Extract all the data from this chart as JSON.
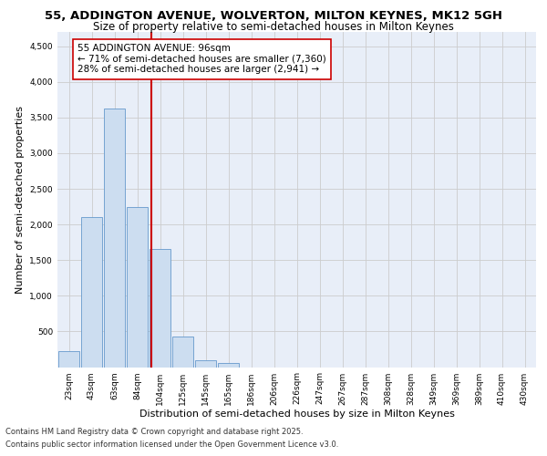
{
  "title_line1": "55, ADDINGTON AVENUE, WOLVERTON, MILTON KEYNES, MK12 5GH",
  "title_line2": "Size of property relative to semi-detached houses in Milton Keynes",
  "xlabel": "Distribution of semi-detached houses by size in Milton Keynes",
  "ylabel": "Number of semi-detached properties",
  "categories": [
    "23sqm",
    "43sqm",
    "63sqm",
    "84sqm",
    "104sqm",
    "125sqm",
    "145sqm",
    "165sqm",
    "186sqm",
    "206sqm",
    "226sqm",
    "247sqm",
    "267sqm",
    "287sqm",
    "308sqm",
    "328sqm",
    "349sqm",
    "369sqm",
    "389sqm",
    "410sqm",
    "430sqm"
  ],
  "values": [
    230,
    2100,
    3620,
    2250,
    1650,
    430,
    100,
    60,
    0,
    0,
    0,
    0,
    0,
    0,
    0,
    0,
    0,
    0,
    0,
    0,
    0
  ],
  "bar_color": "#ccddf0",
  "bar_edge_color": "#6699cc",
  "vline_x": 3.6,
  "vline_color": "#cc0000",
  "annotation_text": "55 ADDINGTON AVENUE: 96sqm\n← 71% of semi-detached houses are smaller (7,360)\n28% of semi-detached houses are larger (2,941) →",
  "annotation_box_color": "#ffffff",
  "annotation_box_edge": "#cc0000",
  "ylim": [
    0,
    4700
  ],
  "yticks": [
    0,
    500,
    1000,
    1500,
    2000,
    2500,
    3000,
    3500,
    4000,
    4500
  ],
  "grid_color": "#cccccc",
  "bg_color": "#e8eef8",
  "footer_line1": "Contains HM Land Registry data © Crown copyright and database right 2025.",
  "footer_line2": "Contains public sector information licensed under the Open Government Licence v3.0.",
  "title_fontsize": 9.5,
  "subtitle_fontsize": 8.5,
  "tick_fontsize": 6.5,
  "label_fontsize": 8,
  "annotation_fontsize": 7.5,
  "footer_fontsize": 6
}
